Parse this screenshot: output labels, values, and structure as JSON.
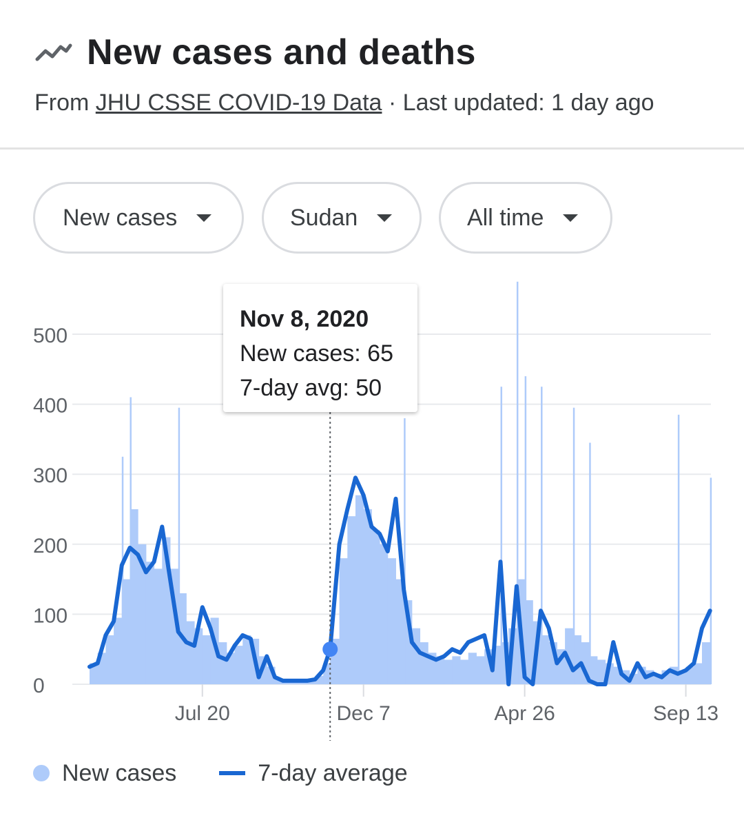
{
  "header": {
    "title": "New cases and deaths",
    "source_prefix": "From ",
    "source_link": "JHU CSSE COVID-19 Data",
    "source_suffix": " · Last updated: 1 day ago"
  },
  "chips": [
    {
      "label": "New cases"
    },
    {
      "label": "Sudan"
    },
    {
      "label": "All time"
    }
  ],
  "tooltip": {
    "date": "Nov 8, 2020",
    "new_cases": "New cases: 65",
    "avg": "7-day avg: 50"
  },
  "legend": {
    "cases_label": "New cases",
    "avg_label": "7-day average"
  },
  "colors": {
    "bar": "#aecbfa",
    "line": "#1967d2",
    "grid": "#e8eaed",
    "axis_text": "#5f6368"
  },
  "chart_data": {
    "type": "bar",
    "title": "",
    "xlabel": "",
    "ylabel": "",
    "ylim": [
      0,
      500
    ],
    "yticks": [
      0,
      100,
      200,
      300,
      400,
      500
    ],
    "x_range": [
      "2020-04-13",
      "2021-10-06"
    ],
    "xticks": [
      {
        "date": "2020-07-20",
        "label": "Jul 20"
      },
      {
        "date": "2020-12-07",
        "label": "Dec 7"
      },
      {
        "date": "2021-04-26",
        "label": "Apr 26"
      },
      {
        "date": "2021-09-13",
        "label": "Sep 13"
      }
    ],
    "highlight": {
      "date": "2020-11-08",
      "new_cases": 65,
      "avg": 50
    },
    "series": [
      {
        "name": "New cases",
        "type": "bar",
        "points": [
          [
            "2020-04-13",
            30
          ],
          [
            "2020-04-20",
            45
          ],
          [
            "2020-04-27",
            70
          ],
          [
            "2020-05-04",
            95
          ],
          [
            "2020-05-11",
            150
          ],
          [
            "2020-05-18",
            250
          ],
          [
            "2020-05-25",
            200
          ],
          [
            "2020-06-01",
            175
          ],
          [
            "2020-06-08",
            165
          ],
          [
            "2020-06-15",
            210
          ],
          [
            "2020-06-22",
            165
          ],
          [
            "2020-06-29",
            130
          ],
          [
            "2020-07-06",
            90
          ],
          [
            "2020-07-13",
            80
          ],
          [
            "2020-07-20",
            70
          ],
          [
            "2020-07-27",
            95
          ],
          [
            "2020-08-03",
            60
          ],
          [
            "2020-08-10",
            45
          ],
          [
            "2020-08-17",
            55
          ],
          [
            "2020-08-24",
            70
          ],
          [
            "2020-08-31",
            65
          ],
          [
            "2020-09-07",
            40
          ],
          [
            "2020-09-14",
            25
          ],
          [
            "2020-09-21",
            8
          ],
          [
            "2020-09-28",
            6
          ],
          [
            "2020-10-05",
            5
          ],
          [
            "2020-10-12",
            4
          ],
          [
            "2020-10-19",
            5
          ],
          [
            "2020-10-26",
            12
          ],
          [
            "2020-11-02",
            30
          ],
          [
            "2020-11-08",
            65
          ],
          [
            "2020-11-16",
            180
          ],
          [
            "2020-11-23",
            240
          ],
          [
            "2020-11-30",
            270
          ],
          [
            "2020-12-07",
            250
          ],
          [
            "2020-12-14",
            220
          ],
          [
            "2020-12-21",
            200
          ],
          [
            "2020-12-28",
            180
          ],
          [
            "2021-01-04",
            150
          ],
          [
            "2021-01-11",
            120
          ],
          [
            "2021-01-18",
            80
          ],
          [
            "2021-01-25",
            60
          ],
          [
            "2021-02-01",
            45
          ],
          [
            "2021-02-08",
            40
          ],
          [
            "2021-02-15",
            35
          ],
          [
            "2021-02-22",
            40
          ],
          [
            "2021-03-01",
            35
          ],
          [
            "2021-03-08",
            45
          ],
          [
            "2021-03-15",
            40
          ],
          [
            "2021-03-22",
            50
          ],
          [
            "2021-03-29",
            55
          ],
          [
            "2021-04-05",
            60
          ],
          [
            "2021-04-12",
            80
          ],
          [
            "2021-04-19",
            150
          ],
          [
            "2021-04-26",
            120
          ],
          [
            "2021-05-03",
            90
          ],
          [
            "2021-05-10",
            70
          ],
          [
            "2021-05-17",
            60
          ],
          [
            "2021-05-24",
            50
          ],
          [
            "2021-05-31",
            80
          ],
          [
            "2021-06-07",
            70
          ],
          [
            "2021-06-14",
            60
          ],
          [
            "2021-06-21",
            40
          ],
          [
            "2021-06-28",
            35
          ],
          [
            "2021-07-05",
            30
          ],
          [
            "2021-07-12",
            25
          ],
          [
            "2021-07-19",
            20
          ],
          [
            "2021-07-26",
            15
          ],
          [
            "2021-08-02",
            25
          ],
          [
            "2021-08-09",
            20
          ],
          [
            "2021-08-16",
            15
          ],
          [
            "2021-08-23",
            20
          ],
          [
            "2021-08-30",
            25
          ],
          [
            "2021-09-06",
            20
          ],
          [
            "2021-09-13",
            25
          ],
          [
            "2021-09-20",
            30
          ],
          [
            "2021-09-27",
            60
          ],
          [
            "2021-10-04",
            80
          ]
        ]
      },
      {
        "name": "7-day average",
        "type": "line",
        "points": [
          [
            "2020-04-13",
            25
          ],
          [
            "2020-04-20",
            30
          ],
          [
            "2020-04-27",
            70
          ],
          [
            "2020-05-04",
            90
          ],
          [
            "2020-05-11",
            170
          ],
          [
            "2020-05-18",
            195
          ],
          [
            "2020-05-25",
            185
          ],
          [
            "2020-06-01",
            160
          ],
          [
            "2020-06-08",
            175
          ],
          [
            "2020-06-15",
            225
          ],
          [
            "2020-06-22",
            150
          ],
          [
            "2020-06-29",
            75
          ],
          [
            "2020-07-06",
            60
          ],
          [
            "2020-07-13",
            55
          ],
          [
            "2020-07-20",
            110
          ],
          [
            "2020-07-27",
            80
          ],
          [
            "2020-08-03",
            40
          ],
          [
            "2020-08-10",
            35
          ],
          [
            "2020-08-17",
            55
          ],
          [
            "2020-08-24",
            70
          ],
          [
            "2020-08-31",
            65
          ],
          [
            "2020-09-07",
            10
          ],
          [
            "2020-09-14",
            40
          ],
          [
            "2020-09-21",
            10
          ],
          [
            "2020-09-28",
            5
          ],
          [
            "2020-10-05",
            5
          ],
          [
            "2020-10-12",
            5
          ],
          [
            "2020-10-19",
            5
          ],
          [
            "2020-10-26",
            7
          ],
          [
            "2020-11-02",
            20
          ],
          [
            "2020-11-08",
            50
          ],
          [
            "2020-11-16",
            200
          ],
          [
            "2020-11-23",
            250
          ],
          [
            "2020-11-30",
            295
          ],
          [
            "2020-12-07",
            270
          ],
          [
            "2020-12-14",
            225
          ],
          [
            "2020-12-21",
            215
          ],
          [
            "2020-12-28",
            190
          ],
          [
            "2021-01-04",
            265
          ],
          [
            "2021-01-11",
            135
          ],
          [
            "2021-01-18",
            60
          ],
          [
            "2021-01-25",
            45
          ],
          [
            "2021-02-01",
            40
          ],
          [
            "2021-02-08",
            35
          ],
          [
            "2021-02-15",
            40
          ],
          [
            "2021-02-22",
            50
          ],
          [
            "2021-03-01",
            45
          ],
          [
            "2021-03-08",
            60
          ],
          [
            "2021-03-15",
            65
          ],
          [
            "2021-03-22",
            70
          ],
          [
            "2021-03-29",
            20
          ],
          [
            "2021-04-05",
            175
          ],
          [
            "2021-04-12",
            0
          ],
          [
            "2021-04-19",
            140
          ],
          [
            "2021-04-26",
            10
          ],
          [
            "2021-05-03",
            0
          ],
          [
            "2021-05-10",
            105
          ],
          [
            "2021-05-17",
            80
          ],
          [
            "2021-05-24",
            30
          ],
          [
            "2021-05-31",
            45
          ],
          [
            "2021-06-07",
            20
          ],
          [
            "2021-06-14",
            30
          ],
          [
            "2021-06-21",
            5
          ],
          [
            "2021-06-28",
            0
          ],
          [
            "2021-07-05",
            0
          ],
          [
            "2021-07-12",
            60
          ],
          [
            "2021-07-19",
            15
          ],
          [
            "2021-07-26",
            5
          ],
          [
            "2021-08-02",
            30
          ],
          [
            "2021-08-09",
            10
          ],
          [
            "2021-08-16",
            15
          ],
          [
            "2021-08-23",
            10
          ],
          [
            "2021-08-30",
            20
          ],
          [
            "2021-09-06",
            15
          ],
          [
            "2021-09-13",
            20
          ],
          [
            "2021-09-20",
            30
          ],
          [
            "2021-09-27",
            80
          ],
          [
            "2021-10-04",
            105
          ]
        ]
      }
    ],
    "spikes": [
      [
        "2020-05-11",
        325
      ],
      [
        "2020-05-18",
        410
      ],
      [
        "2020-06-29",
        395
      ],
      [
        "2021-01-11",
        380
      ],
      [
        "2021-04-05",
        425
      ],
      [
        "2021-04-19",
        575
      ],
      [
        "2021-04-26",
        440
      ],
      [
        "2021-05-10",
        425
      ],
      [
        "2021-06-07",
        395
      ],
      [
        "2021-06-21",
        345
      ],
      [
        "2021-09-06",
        385
      ],
      [
        "2021-10-04",
        295
      ]
    ],
    "legend": "bottom-left",
    "grid": true
  }
}
